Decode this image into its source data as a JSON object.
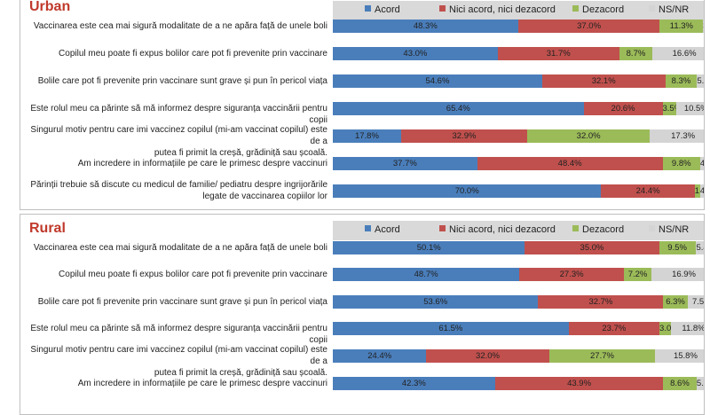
{
  "colors": {
    "acord": "#4a7ebb",
    "nici": "#c0504d",
    "dezacord": "#9bbb59",
    "nsnr": "#d4d4d4"
  },
  "chart_data": [
    {
      "type": "bar",
      "stacked": true,
      "orientation": "horizontal",
      "title": "Urban",
      "legend": [
        "Acord",
        "Nici acord, nici dezacord",
        "Dezacord",
        "NS/NR"
      ],
      "categories": [
        [
          "Vaccinarea este cea mai sigură modalitate de a ne apăra față de unele boli"
        ],
        [
          "Copilul meu poate fi  expus  bolilor care pot fi prevenite prin vaccinare"
        ],
        [
          "Bolile care pot fi prevenite prin vaccinare sunt grave și pun în pericol viața"
        ],
        [
          "Este rolul meu ca părinte să mă informez despre siguranța vaccinării pentru copii"
        ],
        [
          "Singurul motiv pentru care imi vaccinez copilul (mi-am vaccinat copilul)  este  de a",
          "putea fi primit  la creșă, grădiniță sau școală."
        ],
        [
          "Am incredere in informațiile pe care le primesc despre vaccinuri"
        ],
        [
          "Părinții trebuie să discute cu medicul de familie/ pediatru despre ingrijorările",
          "legate de vaccinarea copiilor lor"
        ]
      ],
      "series": [
        {
          "name": "Acord",
          "values": [
            48.3,
            43.0,
            54.6,
            65.4,
            17.8,
            37.7,
            70.0
          ]
        },
        {
          "name": "Nici acord, nici dezacord",
          "values": [
            37.0,
            31.7,
            32.1,
            20.6,
            32.9,
            48.4,
            24.4
          ]
        },
        {
          "name": "Dezacord",
          "values": [
            11.3,
            8.7,
            8.3,
            3.5,
            32.0,
            9.8,
            1.4
          ]
        },
        {
          "name": "NS/NR",
          "values": [
            3.4,
            16.6,
            5.0,
            10.5,
            17.3,
            4.2,
            4.2
          ]
        }
      ],
      "labels": [
        [
          "48.3%",
          "37.0%",
          "11.3%",
          "3.4%"
        ],
        [
          "43.0%",
          "31.7%",
          "8.7%",
          "16.6%"
        ],
        [
          "54.6%",
          "32.1%",
          "8.3%",
          "5.0%"
        ],
        [
          "65.4%",
          "20.6%",
          "3.5%",
          "10.5%"
        ],
        [
          "17.8%",
          "32.9%",
          "32.0%",
          "17.3%"
        ],
        [
          "37.7%",
          "48.4%",
          "9.8%",
          "4.2%"
        ],
        [
          "70.0%",
          "24.4%",
          "1.4%",
          "4.2%"
        ]
      ]
    },
    {
      "type": "bar",
      "stacked": true,
      "orientation": "horizontal",
      "title": "Rural",
      "legend": [
        "Acord",
        "Nici acord, nici dezacord",
        "Dezacord",
        "NS/NR"
      ],
      "categories": [
        [
          "Vaccinarea este cea mai sigură modalitate de a ne apăra față de unele boli"
        ],
        [
          "Copilul meu poate fi  expus  bolilor care pot fi prevenite prin vaccinare"
        ],
        [
          "Bolile care pot fi prevenite prin vaccinare sunt grave și pun în pericol viața"
        ],
        [
          "Este rolul meu ca părinte să mă informez despre siguranța vaccinării pentru copii"
        ],
        [
          "Singurul motiv pentru care imi vaccinez copilul (mi-am vaccinat copilul)  este  de a",
          "putea fi primit  la creșă, grădiniță sau școală."
        ],
        [
          "Am incredere in informațiile pe care le primesc despre vaccinuri"
        ]
      ],
      "series": [
        {
          "name": "Acord",
          "values": [
            50.1,
            48.7,
            53.6,
            61.5,
            24.4,
            42.3
          ]
        },
        {
          "name": "Nici acord, nici dezacord",
          "values": [
            35.0,
            27.3,
            32.7,
            23.7,
            32.0,
            43.9
          ]
        },
        {
          "name": "Dezacord",
          "values": [
            9.5,
            7.2,
            6.3,
            3.0,
            27.7,
            8.6
          ]
        },
        {
          "name": "NS/NR",
          "values": [
            5.4,
            16.9,
            7.5,
            11.8,
            15.8,
            5.2
          ]
        }
      ],
      "labels": [
        [
          "50.1%",
          "35.0%",
          "9.5%",
          "5.4%"
        ],
        [
          "48.7%",
          "27.3%",
          "7.2%",
          "16.9%"
        ],
        [
          "53.6%",
          "32.7%",
          "6.3%",
          "7.5%"
        ],
        [
          "61.5%",
          "23.7%",
          "3.0%",
          "11.8%"
        ],
        [
          "24.4%",
          "32.0%",
          "27.7%",
          "15.8%"
        ],
        [
          "42.3%",
          "43.9%",
          "8.6%",
          "5.2%"
        ]
      ]
    }
  ]
}
